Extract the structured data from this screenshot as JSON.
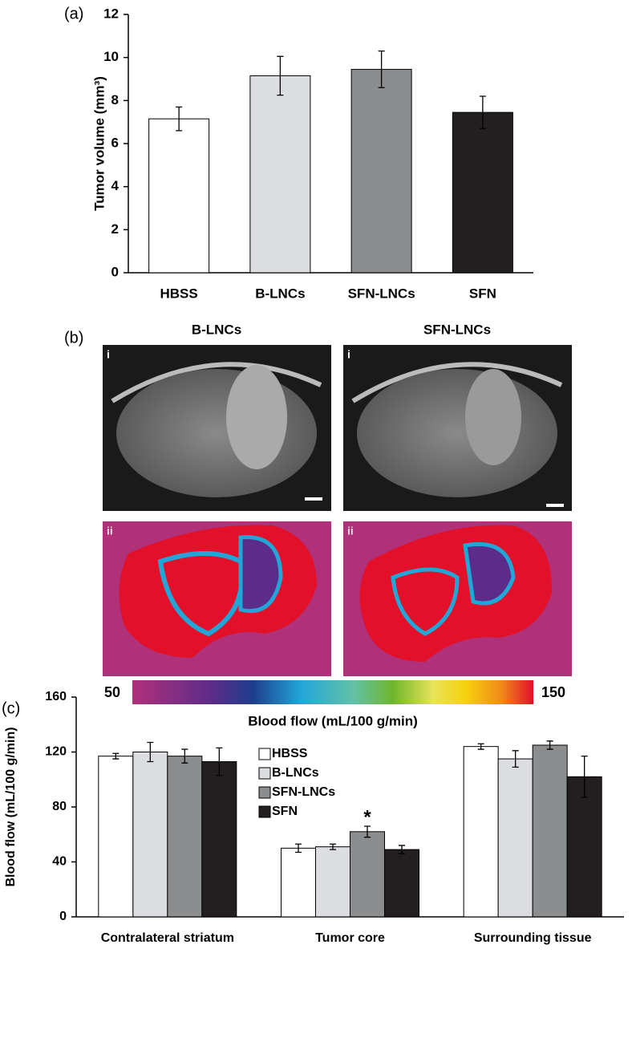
{
  "chart_data": [
    {
      "type": "bar",
      "panel_label": "(a)",
      "ylabel": "Tumor volume (mm³)",
      "categories": [
        "HBSS",
        "B-LNCs",
        "SFN-LNCs",
        "SFN"
      ],
      "values": [
        7.15,
        9.15,
        9.45,
        7.45
      ],
      "errors": [
        0.55,
        0.9,
        0.85,
        0.75
      ],
      "colors": [
        "#ffffff",
        "#dcdde0",
        "#8c8d8f",
        "#231f20"
      ],
      "ylim": [
        0,
        12
      ],
      "yticks": [
        0,
        2,
        4,
        6,
        8,
        10,
        12
      ]
    },
    {
      "type": "grouped_bar",
      "panel_label": "(c)",
      "ylabel": "Blood flow (mL/100 g/min)",
      "categories": [
        "Contralateral striatum",
        "Tumor core",
        "Surrounding tissue"
      ],
      "series": [
        {
          "name": "HBSS",
          "color": "#ffffff",
          "values": [
            117,
            50,
            124
          ],
          "errors": [
            2,
            3,
            2
          ]
        },
        {
          "name": "B-LNCs",
          "color": "#dcdde0",
          "values": [
            120,
            51,
            115
          ],
          "errors": [
            7,
            2,
            6
          ]
        },
        {
          "name": "SFN-LNCs",
          "color": "#8c8d8f",
          "values": [
            117,
            62,
            125
          ],
          "errors": [
            5,
            4,
            3
          ]
        },
        {
          "name": "SFN",
          "color": "#231f20",
          "values": [
            113,
            49,
            102
          ],
          "errors": [
            10,
            3,
            15
          ]
        }
      ],
      "annotation": "*",
      "ylim": [
        0,
        160
      ],
      "yticks": [
        0,
        40,
        80,
        120,
        160
      ]
    }
  ],
  "panel_b": {
    "panel_label": "(b)",
    "columns": [
      "B-LNCs",
      "SFN-LNCs"
    ],
    "rows": [
      "i",
      "ii"
    ],
    "colorbar": {
      "range": [
        50,
        150
      ],
      "label": "Blood flow (mL/100 g/min)"
    }
  }
}
